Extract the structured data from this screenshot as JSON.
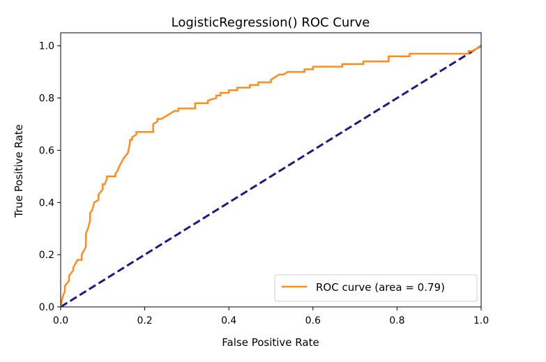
{
  "chart_data": {
    "type": "line",
    "title": "LogisticRegression() ROC Curve",
    "xlabel": "False Positive Rate",
    "ylabel": "True Positive Rate",
    "xlim": [
      0.0,
      1.0
    ],
    "ylim": [
      0.0,
      1.05
    ],
    "xticks": [
      0.0,
      0.2,
      0.4,
      0.6,
      0.8,
      1.0
    ],
    "yticks": [
      0.0,
      0.2,
      0.4,
      0.6,
      0.8,
      1.0
    ],
    "xtick_labels": [
      "0.0",
      "0.2",
      "0.4",
      "0.6",
      "0.8",
      "1.0"
    ],
    "ytick_labels": [
      "0.0",
      "0.2",
      "0.4",
      "0.6",
      "0.8",
      "1.0"
    ],
    "grid": false,
    "legend_position": "lower-right",
    "series": [
      {
        "name": "ROC curve (area = 0.79)",
        "color": "#ff8c1a",
        "style": "solid",
        "x": [
          0.0,
          0.005,
          0.01,
          0.01,
          0.02,
          0.02,
          0.03,
          0.03,
          0.04,
          0.045,
          0.05,
          0.05,
          0.06,
          0.06,
          0.065,
          0.07,
          0.07,
          0.075,
          0.08,
          0.09,
          0.09,
          0.1,
          0.1,
          0.105,
          0.11,
          0.11,
          0.13,
          0.13,
          0.135,
          0.14,
          0.15,
          0.16,
          0.165,
          0.165,
          0.17,
          0.17,
          0.18,
          0.18,
          0.19,
          0.2,
          0.22,
          0.22,
          0.23,
          0.23,
          0.24,
          0.25,
          0.26,
          0.27,
          0.28,
          0.28,
          0.3,
          0.32,
          0.32,
          0.35,
          0.35,
          0.37,
          0.37,
          0.38,
          0.38,
          0.4,
          0.4,
          0.42,
          0.42,
          0.45,
          0.45,
          0.47,
          0.47,
          0.5,
          0.5,
          0.51,
          0.52,
          0.53,
          0.54,
          0.55,
          0.58,
          0.58,
          0.6,
          0.6,
          0.67,
          0.67,
          0.72,
          0.72,
          0.78,
          0.78,
          0.83,
          0.83,
          0.97,
          0.97,
          0.98,
          0.99,
          1.0
        ],
        "y": [
          0.0,
          0.04,
          0.06,
          0.08,
          0.1,
          0.12,
          0.14,
          0.15,
          0.18,
          0.18,
          0.18,
          0.2,
          0.23,
          0.28,
          0.3,
          0.33,
          0.36,
          0.37,
          0.4,
          0.41,
          0.43,
          0.45,
          0.47,
          0.47,
          0.49,
          0.5,
          0.5,
          0.51,
          0.52,
          0.54,
          0.57,
          0.59,
          0.63,
          0.64,
          0.64,
          0.65,
          0.66,
          0.67,
          0.67,
          0.67,
          0.67,
          0.7,
          0.71,
          0.72,
          0.72,
          0.73,
          0.74,
          0.75,
          0.75,
          0.76,
          0.76,
          0.76,
          0.78,
          0.78,
          0.79,
          0.8,
          0.81,
          0.81,
          0.82,
          0.82,
          0.83,
          0.83,
          0.84,
          0.84,
          0.85,
          0.85,
          0.86,
          0.86,
          0.87,
          0.88,
          0.89,
          0.89,
          0.9,
          0.9,
          0.9,
          0.91,
          0.91,
          0.92,
          0.92,
          0.93,
          0.93,
          0.94,
          0.94,
          0.96,
          0.96,
          0.97,
          0.97,
          0.98,
          0.98,
          0.99,
          1.0
        ]
      },
      {
        "color": "#1a1a8c",
        "style": "dashed",
        "x": [
          0.0,
          1.0
        ],
        "y": [
          0.0,
          1.0
        ]
      }
    ]
  }
}
